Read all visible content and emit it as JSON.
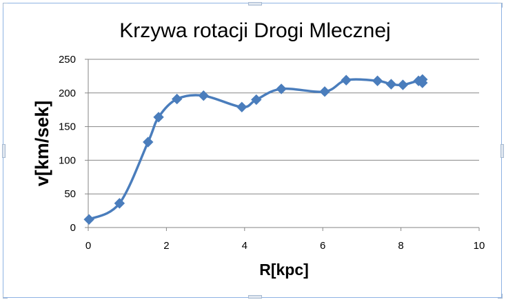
{
  "chart_data": {
    "type": "scatter",
    "title": "Krzywa rotacji Drogi Mlecznej",
    "xlabel": "R[kpc]",
    "ylabel": "v[km/sek]",
    "xlim": [
      0,
      10
    ],
    "ylim": [
      0,
      250
    ],
    "x_ticks": [
      "0",
      "2",
      "4",
      "6",
      "8",
      "10"
    ],
    "y_ticks": [
      "0",
      "50",
      "100",
      "150",
      "200",
      "250"
    ],
    "grid": "horizontal",
    "legend": "none",
    "line": "smoothed",
    "series": [
      {
        "x": [
          0.02,
          0.8,
          1.53,
          1.8,
          2.27,
          2.95,
          3.93,
          4.3,
          4.94,
          6.05,
          6.6,
          7.4,
          7.75,
          8.05,
          8.45,
          8.55,
          8.55
        ],
        "y": [
          12,
          36,
          127,
          164,
          191,
          196,
          179,
          190,
          206,
          202,
          219,
          218,
          213,
          212,
          218,
          215,
          220
        ],
        "color": "#4a7dbc"
      }
    ]
  }
}
